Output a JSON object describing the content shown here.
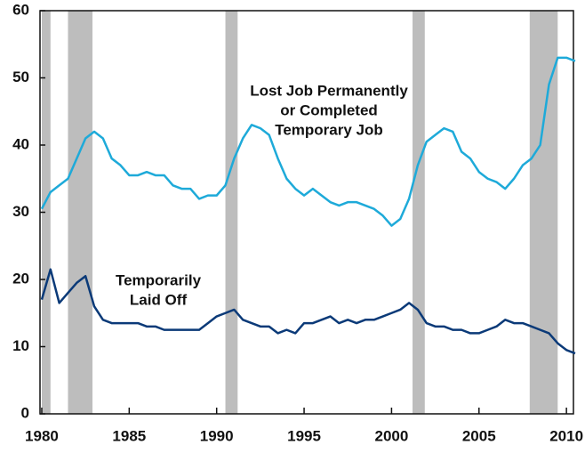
{
  "chart_data": {
    "type": "line",
    "x": [
      1980,
      1980.5,
      1981,
      1981.5,
      1982,
      1982.5,
      1983,
      1983.5,
      1984,
      1984.5,
      1985,
      1985.5,
      1986,
      1986.5,
      1987,
      1987.5,
      1988,
      1988.5,
      1989,
      1989.5,
      1990,
      1990.5,
      1991,
      1991.5,
      1992,
      1992.5,
      1993,
      1993.5,
      1994,
      1994.5,
      1995,
      1995.5,
      1996,
      1996.5,
      1997,
      1997.5,
      1998,
      1998.5,
      1999,
      1999.5,
      2000,
      2000.5,
      2001,
      2001.5,
      2002,
      2002.5,
      2003,
      2003.5,
      2004,
      2004.5,
      2005,
      2005.5,
      2006,
      2006.5,
      2007,
      2007.5,
      2008,
      2008.5,
      2009,
      2009.5,
      2010,
      2010.5
    ],
    "series": [
      {
        "name_lines": [
          "Lost Job Permanently",
          "or Completed",
          "Temporary Job"
        ],
        "color": "#1eaad9",
        "values": [
          30.5,
          33,
          34,
          35,
          38,
          41,
          42,
          41,
          38,
          37,
          35.5,
          35.5,
          36,
          35.5,
          35.5,
          34,
          33.5,
          33.5,
          32,
          32.5,
          32.5,
          34,
          38,
          41,
          43,
          42.5,
          41.5,
          38,
          35,
          33.5,
          32.5,
          33.5,
          32.5,
          31.5,
          31,
          31.5,
          31.5,
          31,
          30.5,
          29.5,
          28,
          29,
          32,
          37,
          40.5,
          41.5,
          42.5,
          42,
          39,
          38,
          36,
          35,
          34.5,
          33.5,
          35,
          37,
          38,
          40,
          49,
          53,
          53,
          52.5
        ]
      },
      {
        "name_lines": [
          "Temporarily",
          "Laid Off"
        ],
        "color": "#0b3a78",
        "values": [
          17,
          21.5,
          16.5,
          18,
          19.5,
          20.5,
          16,
          14,
          13.5,
          13.5,
          13.5,
          13.5,
          13,
          13,
          12.5,
          12.5,
          12.5,
          12.5,
          12.5,
          13.5,
          14.5,
          15,
          15.5,
          14,
          13.5,
          13,
          13,
          12,
          12.5,
          12,
          13.5,
          13.5,
          14,
          14.5,
          13.5,
          14,
          13.5,
          14,
          14,
          14.5,
          15,
          15.5,
          16.5,
          15.5,
          13.5,
          13,
          13,
          12.5,
          12.5,
          12,
          12,
          12.5,
          13,
          14,
          13.5,
          13.5,
          13,
          12.5,
          12,
          10.5,
          9.5,
          9
        ]
      }
    ],
    "recessions": [
      [
        1980.0,
        1980.5
      ],
      [
        1981.5,
        1982.9
      ],
      [
        1990.5,
        1991.2
      ],
      [
        2001.2,
        2001.9
      ],
      [
        2007.9,
        2009.5
      ]
    ],
    "recession_color": "#bdbdbd",
    "xlim": [
      1979.9,
      2010.4
    ],
    "xticks": [
      1980,
      1985,
      1990,
      1995,
      2000,
      2005,
      2010
    ],
    "ylim": [
      0,
      60
    ],
    "yticks": [
      0,
      10,
      20,
      30,
      40,
      50,
      60
    ]
  }
}
